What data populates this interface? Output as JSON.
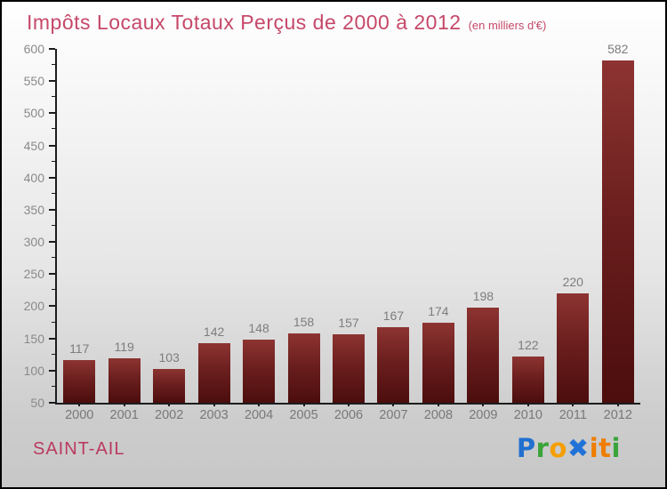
{
  "title": {
    "text": "Impôts Locaux Totaux Perçus de 2000 à 2012",
    "subtitle": "(en milliers d'€)",
    "color": "#c64869"
  },
  "chart_data": {
    "type": "bar",
    "categories": [
      "2000",
      "2001",
      "2002",
      "2003",
      "2004",
      "2005",
      "2006",
      "2007",
      "2008",
      "2009",
      "2010",
      "2011",
      "2012"
    ],
    "values": [
      117,
      119,
      103,
      142,
      148,
      158,
      157,
      167,
      174,
      198,
      122,
      220,
      582
    ],
    "title": "Impôts Locaux Totaux Perçus de 2000 à 2012 (en milliers d'€)",
    "xlabel": "",
    "ylabel": "",
    "ylim": [
      50,
      600
    ],
    "y_tick_step": 50,
    "y_minor_tick_step": 25,
    "grid": false,
    "legend": false,
    "value_labels": true,
    "bar_color_top": "#8d3432",
    "bar_color_bottom": "#4c0d0d",
    "axis_color": "#1c1c1c",
    "tick_label_color": "#8a8a8a"
  },
  "footer": {
    "location": "SAINT-AIL",
    "location_color": "#bb3a60"
  },
  "branding": {
    "name": "Proxiti",
    "letters": [
      {
        "char": "P",
        "color": "#2170cf"
      },
      {
        "char": "r",
        "color": "#3aa43a"
      },
      {
        "char": "o",
        "color": "#f59e00"
      },
      {
        "char": "✖",
        "color": "#2273d8"
      },
      {
        "char": "i",
        "color": "#ef7d00"
      },
      {
        "char": "t",
        "color": "#ef7d00"
      },
      {
        "char": "i",
        "color": "#3aa43a"
      }
    ]
  }
}
